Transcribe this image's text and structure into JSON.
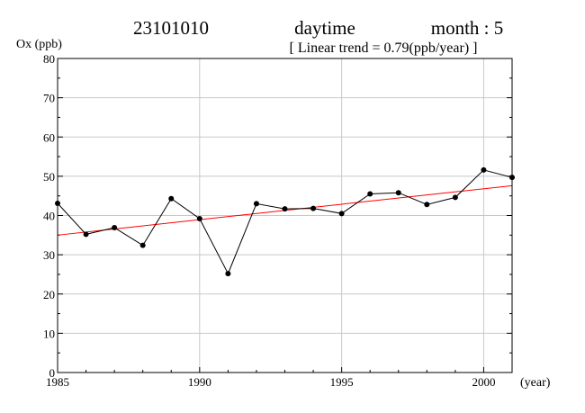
{
  "header": {
    "station": "23101010",
    "period": "daytime",
    "month": "month : 5",
    "trend": "[ Linear trend = 0.79(ppb/year) ]"
  },
  "chart_data": {
    "type": "line",
    "ylabel": "Ox (ppb)",
    "xlabel": "(year)",
    "xlim": [
      1985,
      2001
    ],
    "ylim": [
      0,
      80
    ],
    "xticks": [
      1985,
      1990,
      1995,
      2000
    ],
    "yticks": [
      0,
      10,
      20,
      30,
      40,
      50,
      60,
      70,
      80
    ],
    "grid": true,
    "series": [
      {
        "color": "#000000",
        "x": [
          1985,
          1986,
          1987,
          1988,
          1989,
          1990,
          1991,
          1992,
          1993,
          1994,
          1995,
          1996,
          1997,
          1998,
          1999,
          2000,
          2001
        ],
        "y": [
          43.1,
          35.2,
          36.9,
          32.4,
          44.3,
          39.2,
          25.2,
          43.0,
          41.7,
          41.8,
          40.5,
          45.5,
          45.8,
          42.8,
          44.6,
          51.6,
          49.7
        ]
      }
    ],
    "trend_line": {
      "color": "#ff0000",
      "x": [
        1985,
        2001
      ],
      "y": [
        35.0,
        47.6
      ]
    }
  }
}
